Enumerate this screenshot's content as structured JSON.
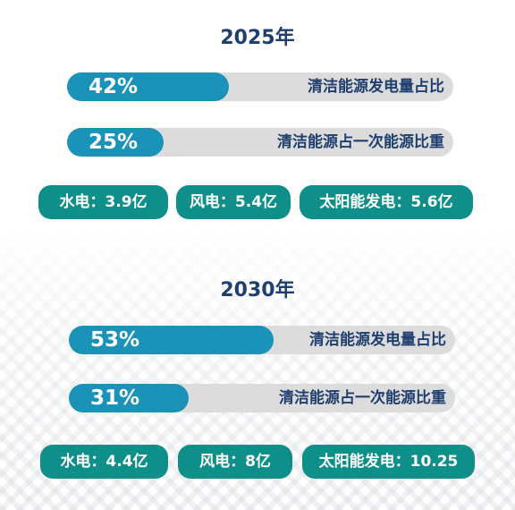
{
  "colors": {
    "year_text": "#1f3f6e",
    "bar_fill": "#1b93b8",
    "bar_track": "#dcdcdc",
    "pill_bg": "#0f8f8a",
    "label_text": "#1f3f6e"
  },
  "sections": [
    {
      "year": "2025年",
      "bars": [
        {
          "value": "42%",
          "fraction": 0.42,
          "label": "清洁能源发电量占比"
        },
        {
          "value": "25%",
          "fraction": 0.25,
          "label": "清洁能源占一次能源比重"
        }
      ],
      "pills": [
        "水电：3.9亿",
        "风电：5.4亿",
        "太阳能发电：5.6亿"
      ]
    },
    {
      "year": "2030年",
      "bars": [
        {
          "value": "53%",
          "fraction": 0.53,
          "label": "清洁能源发电量占比"
        },
        {
          "value": "31%",
          "fraction": 0.31,
          "label": "清洁能源占一次能源比重"
        }
      ],
      "pills": [
        "水电：4.4亿",
        "风电：8亿",
        "太阳能发电：10.25"
      ]
    }
  ]
}
